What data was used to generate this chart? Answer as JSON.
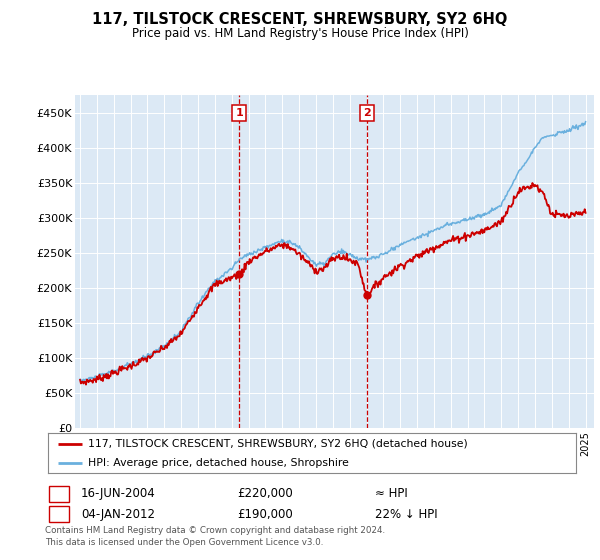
{
  "title": "117, TILSTOCK CRESCENT, SHREWSBURY, SY2 6HQ",
  "subtitle": "Price paid vs. HM Land Registry's House Price Index (HPI)",
  "legend_line1": "117, TILSTOCK CRESCENT, SHREWSBURY, SY2 6HQ (detached house)",
  "legend_line2": "HPI: Average price, detached house, Shropshire",
  "sale1_date": "16-JUN-2004",
  "sale1_price": 220000,
  "sale1_label": "≈ HPI",
  "sale2_date": "04-JAN-2012",
  "sale2_price": 190000,
  "sale2_label": "22% ↓ HPI",
  "footnote1": "Contains HM Land Registry data © Crown copyright and database right 2024.",
  "footnote2": "This data is licensed under the Open Government Licence v3.0.",
  "hpi_color": "#6ab0de",
  "price_color": "#cc0000",
  "sale_marker_color": "#cc0000",
  "background_color": "#dce9f5",
  "ylim": [
    0,
    475000
  ],
  "yticks": [
    0,
    50000,
    100000,
    150000,
    200000,
    250000,
    300000,
    350000,
    400000,
    450000
  ],
  "ytick_labels": [
    "£0",
    "£50K",
    "£100K",
    "£150K",
    "£200K",
    "£250K",
    "£300K",
    "£350K",
    "£400K",
    "£450K"
  ],
  "xlim_start": 1994.7,
  "xlim_end": 2025.5,
  "hpi_keypoints": [
    [
      1995.0,
      68000
    ],
    [
      1996.0,
      73000
    ],
    [
      1997.0,
      82000
    ],
    [
      1998.0,
      92000
    ],
    [
      1999.0,
      103000
    ],
    [
      2000.0,
      118000
    ],
    [
      2001.0,
      138000
    ],
    [
      2002.0,
      178000
    ],
    [
      2003.0,
      210000
    ],
    [
      2004.0,
      228000
    ],
    [
      2004.5,
      242000
    ],
    [
      2005.0,
      248000
    ],
    [
      2006.0,
      258000
    ],
    [
      2007.0,
      268000
    ],
    [
      2007.5,
      265000
    ],
    [
      2008.0,
      258000
    ],
    [
      2009.0,
      233000
    ],
    [
      2009.5,
      235000
    ],
    [
      2010.0,
      248000
    ],
    [
      2010.5,
      252000
    ],
    [
      2011.0,
      248000
    ],
    [
      2011.5,
      242000
    ],
    [
      2012.0,
      240000
    ],
    [
      2013.0,
      248000
    ],
    [
      2014.0,
      262000
    ],
    [
      2015.0,
      272000
    ],
    [
      2016.0,
      282000
    ],
    [
      2017.0,
      292000
    ],
    [
      2018.0,
      298000
    ],
    [
      2019.0,
      305000
    ],
    [
      2020.0,
      318000
    ],
    [
      2021.0,
      365000
    ],
    [
      2022.0,
      400000
    ],
    [
      2022.5,
      415000
    ],
    [
      2023.0,
      418000
    ],
    [
      2024.0,
      425000
    ],
    [
      2025.0,
      435000
    ]
  ],
  "price_keypoints": [
    [
      1995.0,
      65000
    ],
    [
      1996.0,
      70000
    ],
    [
      1997.0,
      79000
    ],
    [
      1998.0,
      89000
    ],
    [
      1999.0,
      100000
    ],
    [
      2000.0,
      115000
    ],
    [
      2001.0,
      135000
    ],
    [
      2002.0,
      173000
    ],
    [
      2003.0,
      205000
    ],
    [
      2004.5,
      220000
    ],
    [
      2005.0,
      238000
    ],
    [
      2006.0,
      252000
    ],
    [
      2007.0,
      262000
    ],
    [
      2007.5,
      258000
    ],
    [
      2008.0,
      248000
    ],
    [
      2009.0,
      225000
    ],
    [
      2009.5,
      228000
    ],
    [
      2010.0,
      242000
    ],
    [
      2010.5,
      245000
    ],
    [
      2011.0,
      240000
    ],
    [
      2011.5,
      235000
    ],
    [
      2012.0,
      190000
    ],
    [
      2013.0,
      215000
    ],
    [
      2014.0,
      232000
    ],
    [
      2015.0,
      245000
    ],
    [
      2016.0,
      258000
    ],
    [
      2017.0,
      268000
    ],
    [
      2018.0,
      275000
    ],
    [
      2019.0,
      282000
    ],
    [
      2020.0,
      295000
    ],
    [
      2021.0,
      338000
    ],
    [
      2022.0,
      348000
    ],
    [
      2022.5,
      335000
    ],
    [
      2023.0,
      305000
    ],
    [
      2024.0,
      302000
    ],
    [
      2025.0,
      308000
    ]
  ]
}
